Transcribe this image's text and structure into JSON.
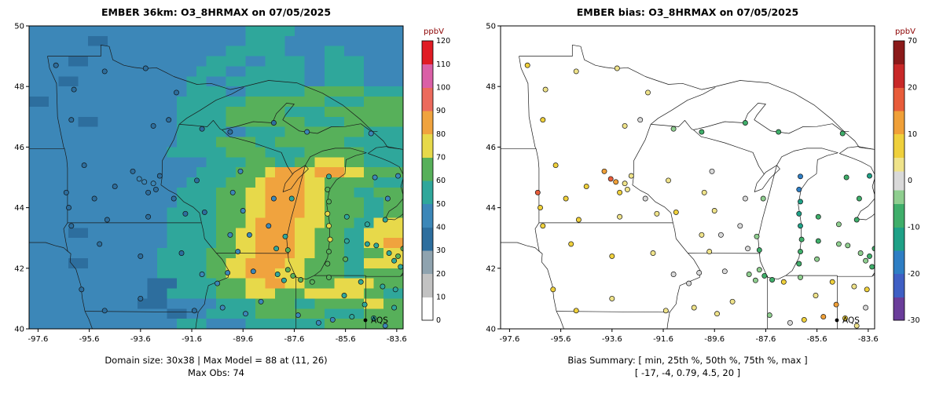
{
  "panels": [
    {
      "title": "EMBER 36km: O3_8HRMAX on 07/05/2025",
      "caption1": "Domain size: 30x38 | Max Model = 88 at (11, 26)",
      "caption2": "Max Obs: 74",
      "colorbar_title": "ppbV",
      "legend_label": "AQS"
    },
    {
      "title": "EMBER bias: O3_8HRMAX on 07/05/2025",
      "caption1": "Bias Summary: [ min, 25th %, 50th %, 75th %, max ]",
      "caption2": "[ -17,  -4,  0.79,  4.5,  20 ]",
      "colorbar_title": "ppbV",
      "legend_label": "AQS"
    }
  ],
  "axes": {
    "x_ticks": [
      -97.6,
      -95.6,
      -93.6,
      -91.6,
      -89.6,
      -87.6,
      -85.6,
      -83.6
    ],
    "y_ticks": [
      40,
      42,
      44,
      46,
      48,
      50
    ],
    "xlim": [
      -97.95,
      -83.35
    ],
    "ylim": [
      40,
      50
    ]
  },
  "colors": {
    "colorbar_title": "#8b0000",
    "outline": "#1a1a1a",
    "dot_stroke": "#111111"
  },
  "stations": [
    [
      -96.9,
      48.7,
      34,
      6
    ],
    [
      -95.0,
      48.5,
      33,
      5
    ],
    [
      -93.4,
      48.6,
      35,
      4
    ],
    [
      -96.2,
      47.9,
      30,
      3
    ],
    [
      -92.2,
      47.8,
      36,
      4
    ],
    [
      -92.5,
      46.9,
      34,
      2
    ],
    [
      -93.1,
      46.7,
      35,
      3
    ],
    [
      -96.3,
      46.9,
      32,
      7
    ],
    [
      -95.8,
      45.4,
      34,
      8
    ],
    [
      -96.5,
      44.5,
      38,
      16
    ],
    [
      -96.4,
      44.0,
      36,
      8
    ],
    [
      -95.4,
      44.3,
      35,
      7
    ],
    [
      -94.6,
      44.7,
      36,
      6
    ],
    [
      -93.9,
      45.2,
      38,
      12
    ],
    [
      -93.65,
      44.95,
      40,
      20
    ],
    [
      -93.45,
      44.85,
      42,
      15
    ],
    [
      -93.1,
      44.8,
      40,
      5
    ],
    [
      -93.0,
      44.6,
      39,
      4
    ],
    [
      -92.85,
      45.05,
      38,
      3
    ],
    [
      -93.3,
      44.5,
      39,
      6
    ],
    [
      -92.3,
      44.3,
      37,
      2
    ],
    [
      -91.85,
      43.8,
      38,
      3
    ],
    [
      -94.9,
      43.6,
      34,
      7
    ],
    [
      -96.3,
      43.4,
      33,
      8
    ],
    [
      -93.3,
      43.7,
      36,
      5
    ],
    [
      -95.2,
      42.8,
      35,
      9
    ],
    [
      -93.6,
      42.4,
      37,
      6
    ],
    [
      -92.0,
      42.5,
      38,
      4
    ],
    [
      -91.2,
      41.8,
      40,
      2
    ],
    [
      -90.6,
      41.5,
      42,
      -1
    ],
    [
      -95.9,
      41.3,
      36,
      10
    ],
    [
      -95.0,
      40.6,
      35,
      8
    ],
    [
      -91.5,
      40.6,
      39,
      3
    ],
    [
      -93.6,
      41.0,
      37,
      5
    ],
    [
      -91.2,
      46.6,
      36,
      -3
    ],
    [
      -90.1,
      46.5,
      37,
      -5
    ],
    [
      -89.7,
      45.2,
      40,
      2
    ],
    [
      -90.0,
      44.5,
      41,
      3
    ],
    [
      -91.4,
      44.9,
      38,
      4
    ],
    [
      -89.6,
      43.9,
      42,
      5
    ],
    [
      -90.1,
      43.1,
      44,
      4
    ],
    [
      -89.35,
      43.1,
      45,
      1
    ],
    [
      -88.6,
      43.4,
      48,
      0
    ],
    [
      -87.95,
      43.05,
      58,
      -3
    ],
    [
      -87.85,
      42.6,
      62,
      -6
    ],
    [
      -88.3,
      42.65,
      52,
      2
    ],
    [
      -89.8,
      42.55,
      44,
      3
    ],
    [
      -91.1,
      43.85,
      39,
      6
    ],
    [
      -87.7,
      44.3,
      52,
      -2
    ],
    [
      -88.4,
      44.3,
      46,
      1
    ],
    [
      -88.4,
      46.8,
      38,
      -8
    ],
    [
      -87.1,
      46.5,
      40,
      -6
    ],
    [
      -84.6,
      46.45,
      42,
      -9
    ],
    [
      -90.2,
      41.85,
      43,
      2
    ],
    [
      -89.2,
      41.9,
      44,
      1
    ],
    [
      -88.25,
      41.8,
      52,
      -2
    ],
    [
      -87.85,
      41.95,
      64,
      -4
    ],
    [
      -87.65,
      41.75,
      68,
      -8
    ],
    [
      -88.0,
      41.6,
      58,
      -3
    ],
    [
      -88.9,
      40.9,
      45,
      4
    ],
    [
      -90.4,
      40.7,
      41,
      5
    ],
    [
      -89.5,
      40.5,
      42,
      3
    ],
    [
      -87.35,
      41.62,
      66,
      -5
    ],
    [
      -86.9,
      41.55,
      62,
      7
    ],
    [
      -86.25,
      41.7,
      60,
      -4
    ],
    [
      -85.0,
      41.55,
      55,
      9
    ],
    [
      -84.85,
      40.8,
      52,
      12
    ],
    [
      -85.35,
      40.4,
      50,
      14
    ],
    [
      -86.1,
      40.3,
      49,
      8
    ],
    [
      -86.65,
      40.2,
      47,
      2
    ],
    [
      -87.45,
      40.45,
      45,
      -2
    ],
    [
      -85.65,
      41.1,
      53,
      4
    ],
    [
      -86.25,
      45.03,
      58,
      -15
    ],
    [
      -86.3,
      44.6,
      60,
      -17
    ],
    [
      -86.25,
      44.2,
      64,
      -14
    ],
    [
      -86.3,
      43.8,
      74,
      -12
    ],
    [
      -86.25,
      43.4,
      72,
      -10
    ],
    [
      -86.2,
      42.95,
      70,
      -8
    ],
    [
      -86.25,
      42.55,
      68,
      -6
    ],
    [
      -86.3,
      42.15,
      66,
      -5
    ],
    [
      -85.6,
      42.3,
      60,
      -4
    ],
    [
      -85.55,
      42.9,
      58,
      -5
    ],
    [
      -84.75,
      42.8,
      56,
      -3
    ],
    [
      -84.4,
      42.75,
      54,
      -2
    ],
    [
      -83.9,
      42.5,
      58,
      -4
    ],
    [
      -83.55,
      42.4,
      60,
      -6
    ],
    [
      -83.35,
      42.65,
      62,
      -8
    ],
    [
      -83.7,
      42.25,
      56,
      -3
    ],
    [
      -83.45,
      42.05,
      54,
      -5
    ],
    [
      -84.05,
      43.6,
      52,
      -6
    ],
    [
      -83.95,
      44.3,
      48,
      -8
    ],
    [
      -84.45,
      45.0,
      46,
      -9
    ],
    [
      -83.55,
      45.05,
      44,
      -10
    ],
    [
      -84.75,
      43.45,
      50,
      -4
    ],
    [
      -85.55,
      43.7,
      55,
      -7
    ],
    [
      -84.15,
      41.4,
      56,
      4
    ],
    [
      -83.65,
      41.3,
      58,
      6
    ],
    [
      -84.5,
      40.35,
      50,
      10
    ],
    [
      -84.05,
      40.1,
      48,
      3
    ],
    [
      -83.7,
      40.7,
      52,
      2
    ]
  ],
  "chart_data": [
    {
      "type": "heatmap",
      "title": "EMBER 36km: O3_8HRMAX on 07/05/2025",
      "units": "ppbV",
      "domain_size": "30x38",
      "max_model": 88,
      "max_model_at": "(11, 26)",
      "max_obs": 74,
      "x_range": [
        -97.95,
        -83.35
      ],
      "y_range": [
        40,
        50
      ],
      "grid": {
        "rows": 30,
        "cols": 38,
        "encoding": "run-length 'count*bin' per row, top row first; bin b means value in [b*10,(b+1)*10) ppbV",
        "rows_rle": [
          "22*4 5*5 11*4",
          "6*4 2*3 14*4 4*5 12*4",
          "20*4 6*5 4*4 2*5 6*4",
          "4*4 2*3 12*4 4*5 2*4 4*5 2*4 4*5 4*4",
          "17*4 3*5 2*4 6*5 2*4 4*5 4*4",
          "3*4 2*3 11*4 2*5 2*4 8*5 2*4 4*5 4*4",
          "16*4 4*5 2*4 6*5 6*6 4*5",
          "2*3 13*4 7*5 8*6 4*5 4*6",
          "15*4 5*5 6*6 4*5 8*6",
          "5*4 2*3 8*4 5*5 8*6 4*5 6*6",
          "15*4 5*5 2*4 4*5 8*6 4*5",
          "15*4 4*5 4*6 2*5 7*6 6*5",
          "14*4 6*5 4*6 4*5 6*6 4*5",
          "18*4 4*5 3*6 2*5 2*6 3*7 2*6 4*5",
          "17*4 4*5 3*6 1*7 3*8 1*7 3*8 2*7 4*6",
          "16*4 4*5 3*6 1*7 4*8 2*7 5*6 3*5",
          "15*4 4*5 3*6 2*7 4*8 2*7 3*6 2*5 3*6",
          "15*4 4*5 3*6 2*7 4*8 2*7 4*6 2*5 2*6",
          "14*4 5*5 3*6 2*7 4*8 2*7 4*6 2*5 2*6",
          "14*4 5*5 3*6 1*7 4*8 3*7 3*6 2*5 3*7",
          "4*4 2*3 8*4 5*5 2*6 2*7 4*8 2*7 3*6 2*5 4*7",
          "14*4 5*5 2*6 2*7 4*8 2*7 3*6 2*5 2*7 2*8",
          "13*4 5*5 3*6 2*7 4*8 2*7 3*6 2*5 2*6 2*7",
          "4*4 2*3 7*4 5*5 2*6 2*7 4*8 2*7 4*6 2*5 4*7",
          "13*4 5*5 2*6 2*7 3*8 3*7 4*6 2*5 4*6",
          "12*4 3*3 4*5 3*6 2*7 2*8 2*7 3*6 4*7 3*6",
          "12*4 2*3 5*5 3*6 3*7 3*6 6*7 2*6 2*5",
          "11*4 3*3 5*4 4*5 4*6 2*5 5*6 2*7 2*6",
          "14*4 2*3 2*4 5*5 7*6 4*5 4*6",
          "15*4 3*5 4*4 8*5 8*6"
        ]
      },
      "scale": {
        "breaks": [
          0,
          10,
          20,
          30,
          40,
          50,
          60,
          70,
          80,
          90,
          100,
          110,
          120
        ],
        "colors": [
          "#ffffff",
          "#c2c2c2",
          "#8fa3af",
          "#2d6e9e",
          "#3c87b8",
          "#2fa79b",
          "#57b05a",
          "#e7d94a",
          "#f0a33e",
          "#ec6a5c",
          "#da5fa6",
          "#e01b24"
        ]
      },
      "stations_field": "obs"
    },
    {
      "type": "scatter",
      "title": "EMBER bias: O3_8HRMAX on 07/05/2025",
      "units": "ppbV",
      "bias_summary": {
        "min": -17,
        "q25": -4,
        "median": 0.79,
        "q75": 4.5,
        "max": 20
      },
      "scale": {
        "anchors": [
          -30,
          -20,
          -10,
          0,
          10,
          20,
          70
        ],
        "breaks": [
          -30,
          -25,
          -20,
          -15,
          -10,
          -5,
          -2,
          2,
          5,
          10,
          15,
          20,
          45,
          70
        ],
        "colors": [
          "#6a3d9a",
          "#3f5fc4",
          "#2e7ec4",
          "#1fa187",
          "#3fae6a",
          "#8fce8f",
          "#d9d9d9",
          "#efe38a",
          "#efd03c",
          "#f0a038",
          "#e85c3a",
          "#c82828",
          "#8b1a1a"
        ]
      },
      "stations_field": "bias"
    }
  ]
}
